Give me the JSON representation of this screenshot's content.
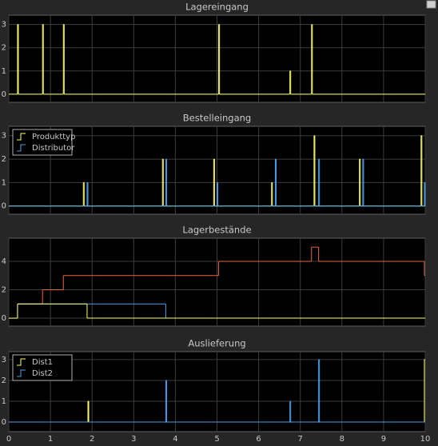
{
  "chart_data": [
    {
      "type": "line",
      "title": "Lagereingang",
      "drawstyle": "steps-post",
      "grid": true,
      "xlim": [
        0,
        10
      ],
      "xticks": [
        0,
        1,
        2,
        3,
        4,
        5,
        6,
        7,
        8,
        9,
        10
      ],
      "show_xtick_labels": false,
      "ylim": [
        -0.35,
        3.4
      ],
      "yticks": [
        0,
        1,
        2,
        3
      ],
      "series": [
        {
          "color": "#ffff66",
          "x": [
            0,
            0.21,
            0.23,
            0.81,
            0.83,
            1.31,
            1.33,
            5.04,
            5.06,
            6.75,
            6.77,
            7.27,
            7.29,
            10
          ],
          "values": [
            0,
            3,
            0,
            3,
            0,
            3,
            0,
            3,
            0,
            1,
            0,
            3,
            0,
            0
          ]
        }
      ]
    },
    {
      "type": "line",
      "title": "Bestelleingang",
      "drawstyle": "steps-post",
      "grid": true,
      "legend": "upper left",
      "xlim": [
        0,
        10
      ],
      "xticks": [
        0,
        1,
        2,
        3,
        4,
        5,
        6,
        7,
        8,
        9,
        10
      ],
      "show_xtick_labels": false,
      "ylim": [
        -0.35,
        3.4
      ],
      "yticks": [
        0,
        1,
        2,
        3
      ],
      "series": [
        {
          "name": "Produkttyp",
          "color": "#ffff66",
          "x": [
            0,
            1.79,
            1.81,
            3.69,
            3.71,
            4.92,
            4.94,
            6.31,
            6.33,
            7.33,
            7.35,
            8.42,
            8.44,
            9.9,
            9.92,
            10
          ],
          "values": [
            0,
            1,
            0,
            2,
            0,
            2,
            0,
            1,
            0,
            3,
            0,
            2,
            0,
            3,
            0,
            0
          ]
        },
        {
          "name": "Distributor",
          "color": "#4a9fe8",
          "x": [
            0,
            1.88,
            1.9,
            3.77,
            3.79,
            5.0,
            5.02,
            6.4,
            6.42,
            7.44,
            7.46,
            8.5,
            8.52,
            9.98,
            10
          ],
          "values": [
            0,
            1,
            0,
            2,
            0,
            1,
            0,
            2,
            0,
            2,
            0,
            2,
            0,
            1,
            0
          ]
        }
      ]
    },
    {
      "type": "line",
      "title": "Lagerbestände",
      "drawstyle": "steps-post",
      "grid": true,
      "xlim": [
        0,
        10
      ],
      "xticks": [
        0,
        1,
        2,
        3,
        4,
        5,
        6,
        7,
        8,
        9,
        10
      ],
      "show_xtick_labels": false,
      "ylim": [
        -0.56,
        5.63
      ],
      "yticks": [
        0,
        2,
        4
      ],
      "series": [
        {
          "color": "#e8663a",
          "x": [
            0,
            0.21,
            0.81,
            1.31,
            5.04,
            7.27,
            7.44,
            9.98,
            10
          ],
          "values": [
            0,
            1,
            2,
            3,
            4,
            5,
            4,
            3,
            3
          ]
        },
        {
          "color": "#4a9fe8",
          "x": [
            0,
            0.21,
            3.77,
            10
          ],
          "values": [
            0,
            1,
            0,
            0
          ]
        },
        {
          "color": "#ffff66",
          "x": [
            0,
            0.21,
            1.88,
            10
          ],
          "values": [
            0,
            1,
            0,
            0
          ]
        }
      ]
    },
    {
      "type": "line",
      "title": "Auslieferung",
      "drawstyle": "steps-post",
      "grid": true,
      "legend": "upper left",
      "xlim": [
        0,
        10
      ],
      "xticks": [
        0,
        1,
        2,
        3,
        4,
        5,
        6,
        7,
        8,
        9,
        10
      ],
      "show_xtick_labels": true,
      "ylim": [
        -0.46,
        3.38
      ],
      "yticks": [
        0,
        1,
        2,
        3
      ],
      "series": [
        {
          "name": "Dist1",
          "color": "#ffff66",
          "x": [
            0,
            1.9,
            1.92,
            9.98,
            10
          ],
          "values": [
            0,
            1,
            0,
            3,
            3
          ]
        },
        {
          "name": "Dist2",
          "color": "#4a9fe8",
          "x": [
            0,
            3.77,
            3.79,
            6.75,
            6.77,
            7.44,
            7.46,
            10
          ],
          "values": [
            0,
            2,
            0,
            1,
            0,
            3,
            0,
            0
          ]
        }
      ]
    }
  ]
}
